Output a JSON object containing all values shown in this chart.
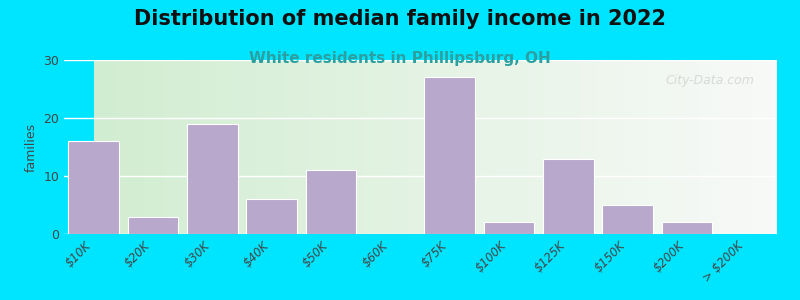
{
  "title": "Distribution of median family income in 2022",
  "subtitle": "White residents in Phillipsburg, OH",
  "xlabel": "",
  "ylabel": "families",
  "categories": [
    "$10K",
    "$20K",
    "$30K",
    "$40K",
    "$50K",
    "$60K",
    "$75K",
    "$100K",
    "$125K",
    "$150K",
    "$200K",
    "> $200K"
  ],
  "values": [
    16,
    3,
    19,
    6,
    11,
    0,
    27,
    2,
    13,
    5,
    2,
    0
  ],
  "bar_color": "#b8a8cc",
  "bar_edge_color": "#ffffff",
  "ylim": [
    0,
    30
  ],
  "yticks": [
    0,
    10,
    20,
    30
  ],
  "background_outer": "#00e5ff",
  "plot_bg_left": "#d4edda",
  "plot_bg_right": "#f5f5f5",
  "title_fontsize": 15,
  "subtitle_fontsize": 11,
  "subtitle_color": "#2ca0a0",
  "watermark_text": "City-Data.com",
  "watermark_color": "#cccccc"
}
